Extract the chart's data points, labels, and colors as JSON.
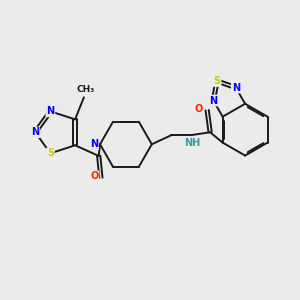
{
  "background_color": "#ebebeb",
  "bond_color": "#1a1a1a",
  "atom_colors": {
    "N": "#0000ff",
    "O": "#ff2200",
    "S": "#cccc00",
    "C": "#1a1a1a",
    "H": "#3399aa"
  },
  "figsize": [
    3.0,
    3.0
  ],
  "dpi": 100,
  "lw": 1.4,
  "fs": 7.0
}
